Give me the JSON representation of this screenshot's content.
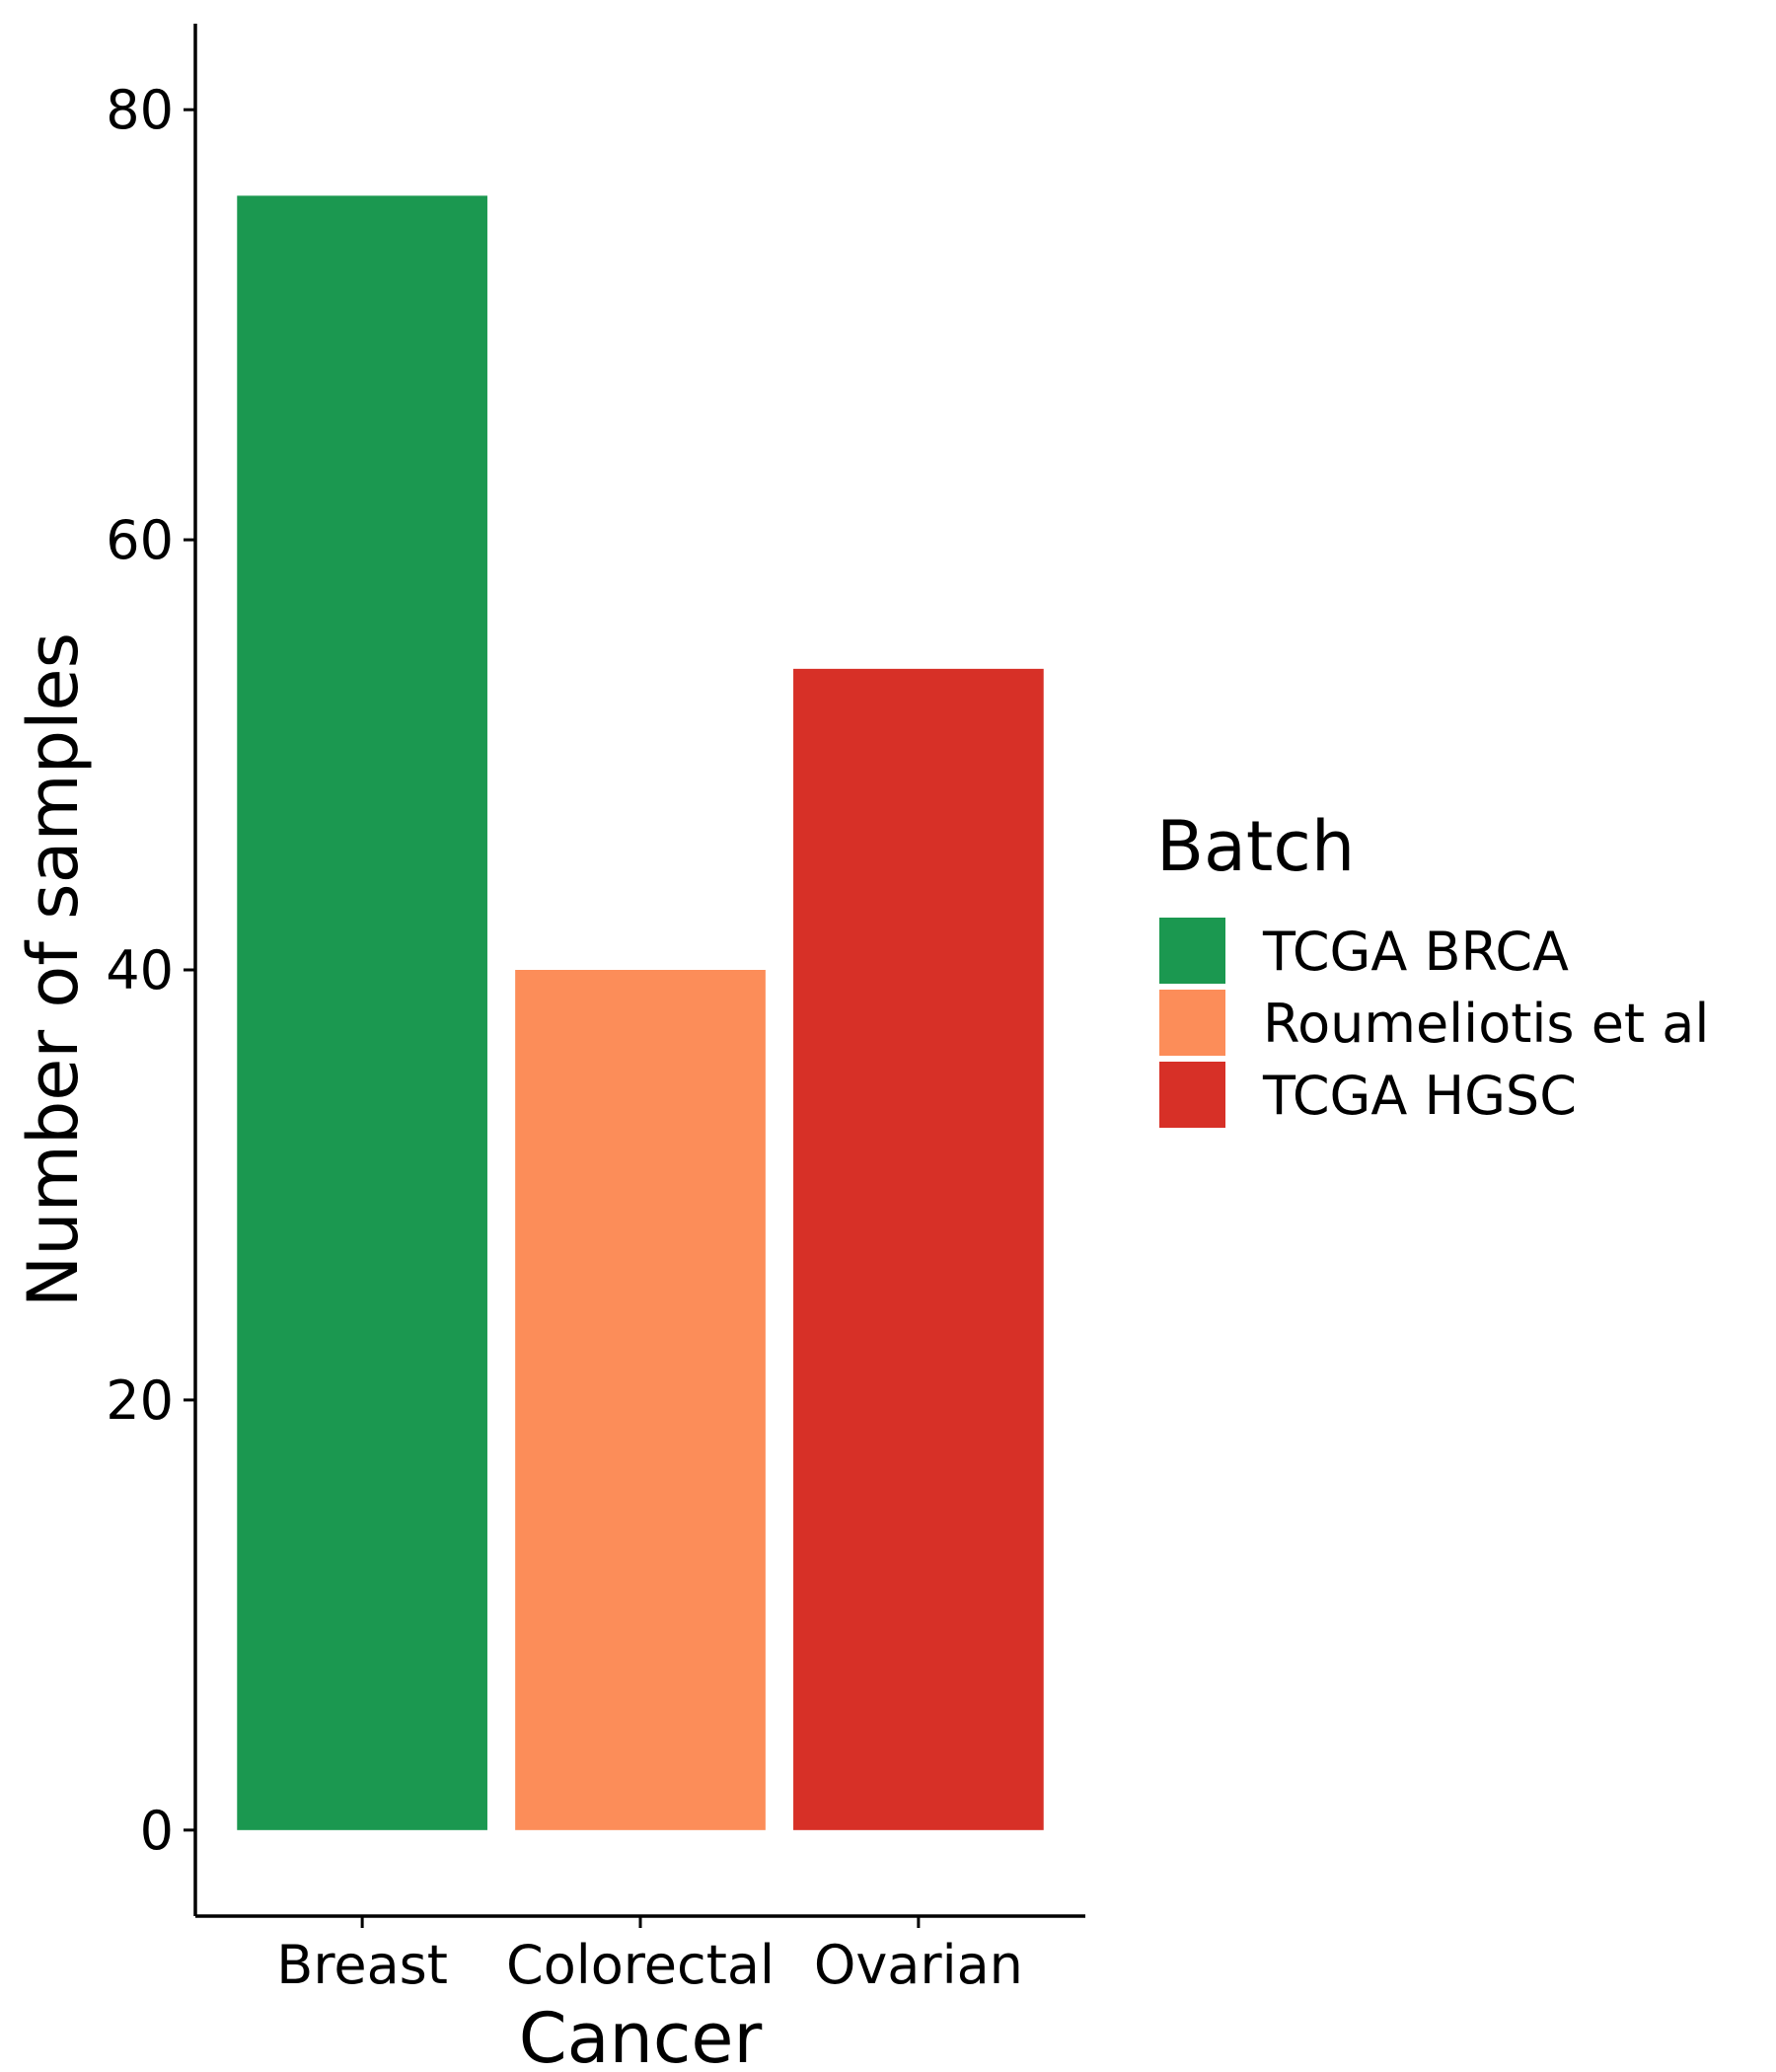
{
  "chart_data": {
    "type": "bar",
    "xlabel": "Cancer",
    "ylabel": "Number of samples",
    "categories": [
      "Breast",
      "Colorectal",
      "Ovarian"
    ],
    "values": [
      76,
      40,
      54
    ],
    "bar_colors": [
      "#1b9850",
      "#fc8d59",
      "#d73027"
    ],
    "ylim": [
      -4,
      84
    ],
    "yticks": [
      0,
      20,
      40,
      60,
      80
    ],
    "grid": false,
    "legend": {
      "title": "Batch",
      "placement": "right",
      "entries": [
        {
          "label": "TCGA BRCA",
          "color": "#1b9850"
        },
        {
          "label": "Roumeliotis et al",
          "color": "#fc8d59"
        },
        {
          "label": "TCGA HGSC",
          "color": "#d73027"
        }
      ]
    }
  }
}
